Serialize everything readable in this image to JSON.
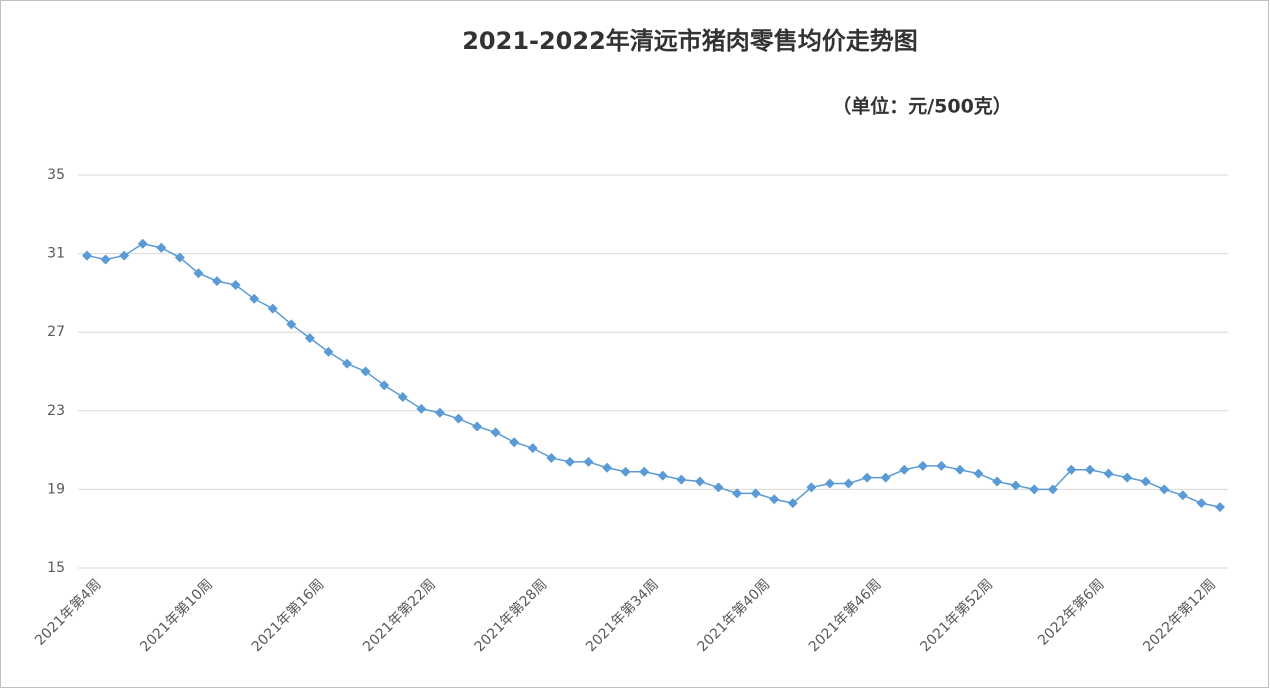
{
  "chart_data": {
    "type": "line",
    "title": "2021-2022年清远市猪肉零售均价走势图",
    "subtitle": "（单位：元/500克）",
    "categories": [
      "2021年第4周",
      null,
      null,
      null,
      null,
      null,
      "2021年第10周",
      null,
      null,
      null,
      null,
      null,
      "2021年第16周",
      null,
      null,
      null,
      null,
      null,
      "2021年第22周",
      null,
      null,
      null,
      null,
      null,
      "2021年第28周",
      null,
      null,
      null,
      null,
      null,
      "2021年第34周",
      null,
      null,
      null,
      null,
      null,
      "2021年第40周",
      null,
      null,
      null,
      null,
      null,
      "2021年第46周",
      null,
      null,
      null,
      null,
      null,
      "2021年第52周",
      null,
      null,
      null,
      null,
      null,
      "2022年第6周",
      null,
      null,
      null,
      null,
      null,
      "2022年第12周",
      null
    ],
    "series": [
      {
        "name": "猪肉零售均价",
        "color": "#5b9bd5",
        "values": [
          30.9,
          30.7,
          30.9,
          31.5,
          31.3,
          30.8,
          30.0,
          29.6,
          29.4,
          28.7,
          28.2,
          27.4,
          26.7,
          26.0,
          25.4,
          25.0,
          24.3,
          23.7,
          23.1,
          22.9,
          22.6,
          22.2,
          21.9,
          21.4,
          21.1,
          20.6,
          20.4,
          20.4,
          20.1,
          19.9,
          19.9,
          19.7,
          19.5,
          19.4,
          19.1,
          18.8,
          18.8,
          18.5,
          18.3,
          19.1,
          19.3,
          19.3,
          19.6,
          19.6,
          20.0,
          20.2,
          20.2,
          20.0,
          19.8,
          19.4,
          19.2,
          19.0,
          19.0,
          20.0,
          20.0,
          19.8,
          19.6,
          19.4,
          19.0,
          18.7,
          18.3,
          18.1
        ]
      }
    ],
    "ylim": [
      15,
      35
    ],
    "yticks": [
      15,
      19,
      23,
      27,
      31,
      35
    ],
    "grid": true
  }
}
